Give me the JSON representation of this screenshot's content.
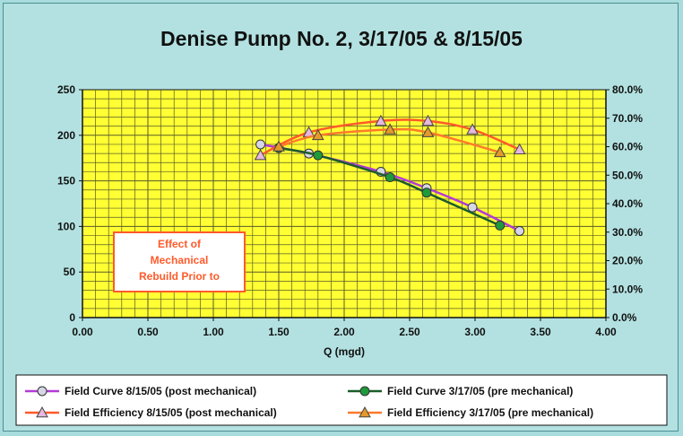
{
  "chart_data": {
    "type": "line",
    "title": "Denise Pump No. 2, 3/17/05 & 8/15/05",
    "xlabel": "Q (mgd)",
    "ylabel": "",
    "y2label": "",
    "xlim": [
      0,
      4
    ],
    "ylim": [
      0,
      250
    ],
    "y2lim": [
      0,
      0.8
    ],
    "x_ticks": [
      "0.00",
      "0.50",
      "1.00",
      "1.50",
      "2.00",
      "2.50",
      "3.00",
      "3.50",
      "4.00"
    ],
    "y_ticks": [
      "0",
      "50",
      "100",
      "150",
      "200",
      "250"
    ],
    "y2_ticks": [
      "0.0%",
      "10.0%",
      "20.0%",
      "30.0%",
      "40.0%",
      "50.0%",
      "60.0%",
      "70.0%",
      "80.0%"
    ],
    "grid": true,
    "legend_position": "bottom",
    "series": [
      {
        "name": "Field Curve 8/15/05 (post mechanical)",
        "axis": "left",
        "marker": "circle",
        "line_color": "#b33ad6",
        "marker_fill": "#d6d6e6",
        "points": [
          [
            1.36,
            190
          ],
          [
            1.73,
            180
          ],
          [
            2.28,
            160
          ],
          [
            2.63,
            142
          ],
          [
            2.98,
            121
          ],
          [
            3.34,
            95
          ]
        ]
      },
      {
        "name": "Field Curve 3/17/05 (pre mechanical)",
        "axis": "left",
        "marker": "circle",
        "line_color": "#1c5c2c",
        "marker_fill": "#1f9a3a",
        "points": [
          [
            1.5,
            186
          ],
          [
            1.8,
            178
          ],
          [
            2.35,
            154
          ],
          [
            2.63,
            137
          ],
          [
            3.19,
            101
          ]
        ]
      },
      {
        "name": "Field Efficiency 8/15/05 (post mechanical)",
        "axis": "right",
        "marker": "triangle",
        "line_color": "#ff5a2a",
        "marker_fill": "#e6b8de",
        "points": [
          [
            1.36,
            0.57
          ],
          [
            1.73,
            0.65
          ],
          [
            2.28,
            0.69
          ],
          [
            2.64,
            0.69
          ],
          [
            2.98,
            0.66
          ],
          [
            3.34,
            0.59
          ]
        ]
      },
      {
        "name": "Field Efficiency 3/17/05 (pre mechanical)",
        "axis": "right",
        "marker": "triangle",
        "line_color": "#ff7a2a",
        "marker_fill": "#e49a2a",
        "points": [
          [
            1.5,
            0.6
          ],
          [
            1.8,
            0.64
          ],
          [
            2.35,
            0.66
          ],
          [
            2.64,
            0.65
          ],
          [
            3.19,
            0.58
          ]
        ]
      }
    ],
    "annotation": {
      "lines": [
        "Effect of",
        "Mechanical",
        "Rebuild Prior to"
      ]
    }
  }
}
